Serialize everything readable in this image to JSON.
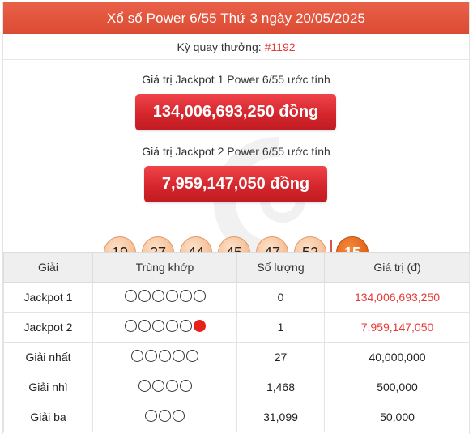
{
  "header": {
    "title": "Xổ số Power 6/55 Thứ 3 ngày 20/05/2025"
  },
  "draw": {
    "label": "Kỳ quay thưởng:",
    "number": "#1192"
  },
  "jackpot1": {
    "label": "Giá trị Jackpot 1 Power 6/55 ước tính",
    "value": "134,006,693,250 đồng"
  },
  "jackpot2": {
    "label": "Giá trị Jackpot 2 Power 6/55 ước tính",
    "value": "7,959,147,050 đồng"
  },
  "balls": [
    "19",
    "27",
    "44",
    "45",
    "47",
    "52"
  ],
  "power_ball": "15",
  "table": {
    "headers": [
      "Giải",
      "Trùng khớp",
      "Số lượng",
      "Giá trị (đ)"
    ],
    "rows": [
      {
        "prize": "Jackpot 1",
        "match_count": 6,
        "power_match": false,
        "quantity": "0",
        "value": "134,006,693,250",
        "highlight": true
      },
      {
        "prize": "Jackpot 2",
        "match_count": 5,
        "power_match": true,
        "quantity": "1",
        "value": "7,959,147,050",
        "highlight": true
      },
      {
        "prize": "Giải nhất",
        "match_count": 5,
        "power_match": false,
        "quantity": "27",
        "value": "40,000,000",
        "highlight": false
      },
      {
        "prize": "Giải nhì",
        "match_count": 4,
        "power_match": false,
        "quantity": "1,468",
        "value": "500,000",
        "highlight": false
      },
      {
        "prize": "Giải ba",
        "match_count": 3,
        "power_match": false,
        "quantity": "31,099",
        "value": "50,000",
        "highlight": false
      }
    ]
  },
  "colors": {
    "header": "#dc4b33",
    "accent_red": "#e53935",
    "jackpot_bg": "#d3242b",
    "ball": "#f7c49e",
    "power_ball": "#e5661b"
  }
}
